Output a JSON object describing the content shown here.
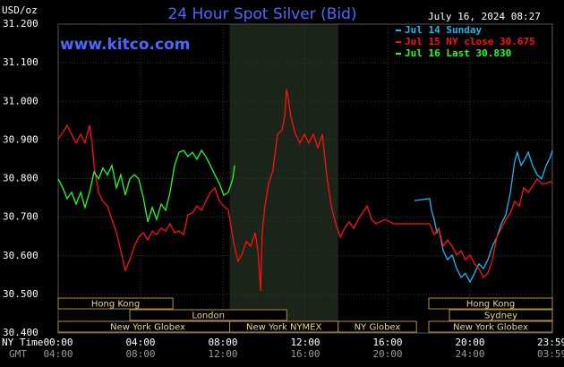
{
  "chart_data": {
    "type": "line",
    "title": "24 Hour Spot Silver (Bid)",
    "unit_label": "USD/oz",
    "timestamp": "July 16, 2024 08:27",
    "watermark": "www.kitco.com",
    "x_row_labels": [
      "NY Time",
      "GMT"
    ],
    "xlim": [
      0,
      24
    ],
    "ylim": [
      30.4,
      31.2
    ],
    "yticks": [
      {
        "value": 30.4,
        "label": "30.400"
      },
      {
        "value": 30.5,
        "label": "30.500"
      },
      {
        "value": 30.6,
        "label": "30.600"
      },
      {
        "value": 30.7,
        "label": "30.700"
      },
      {
        "value": 30.8,
        "label": "30.800"
      },
      {
        "value": 30.9,
        "label": "30.900"
      },
      {
        "value": 31.0,
        "label": "31.000"
      },
      {
        "value": 31.1,
        "label": "31.100"
      },
      {
        "value": 31.2,
        "label": "31.200"
      }
    ],
    "xticks": [
      {
        "value": 0,
        "label": "00:00"
      },
      {
        "value": 4,
        "label": "04:00"
      },
      {
        "value": 8,
        "label": "08:00"
      },
      {
        "value": 12,
        "label": "12:00"
      },
      {
        "value": 16,
        "label": "16:00"
      },
      {
        "value": 20,
        "label": "20:00"
      },
      {
        "value": 23.98,
        "label": "23:59"
      }
    ],
    "gmt_tick_labels": [
      "04:00",
      "08:00",
      "12:00",
      "16:00",
      "20:00",
      "24:00",
      "03:59"
    ],
    "grid": true,
    "sessions": [
      {
        "label": "Hong Kong",
        "start": 0,
        "end": 5.57
      },
      {
        "label": "London",
        "start": 3.48,
        "end": 11.1
      },
      {
        "label": "New York Globex",
        "start": 0,
        "end": 8.7
      },
      {
        "label": "New York NYMEX",
        "start": 8.33,
        "end": 13.6
      },
      {
        "label": "NY Globex",
        "start": 13.6,
        "end": 17.4
      },
      {
        "label": "Hong Kong",
        "start": 18,
        "end": 24
      },
      {
        "label": "Sydney",
        "start": 19,
        "end": 24
      },
      {
        "label": "New York Globex",
        "start": 18,
        "end": 24
      }
    ],
    "series": [
      {
        "name": "Jul 14 Sunday",
        "color": "#1ab8f0",
        "x": [
          17.3,
          18.04,
          18.13,
          18.26,
          18.39,
          18.48,
          18.7,
          18.91,
          19.13,
          19.35,
          19.57,
          19.78,
          20,
          20.22,
          20.43,
          20.65,
          20.87,
          21.09,
          21.3,
          21.52,
          21.74,
          21.96,
          22.17,
          22.3,
          22.48,
          22.61,
          22.83,
          23.04,
          23.26,
          23.48,
          23.7,
          23.91,
          24
        ],
        "values": [
          30.743,
          30.748,
          30.718,
          30.694,
          30.66,
          30.671,
          30.613,
          30.59,
          30.602,
          30.567,
          30.544,
          30.555,
          30.532,
          30.555,
          30.579,
          30.567,
          30.59,
          30.625,
          30.648,
          30.683,
          30.706,
          30.764,
          30.845,
          30.868,
          30.834,
          30.845,
          30.868,
          30.834,
          30.81,
          30.799,
          30.834,
          30.857,
          30.873
        ]
      },
      {
        "name": "Jul 15 NY close 30.675",
        "color": "#ff1010",
        "x": [
          0,
          0.22,
          0.43,
          0.65,
          0.87,
          1.09,
          1.3,
          1.52,
          1.65,
          1.74,
          1.96,
          2.17,
          2.39,
          2.61,
          2.83,
          3.04,
          3.26,
          3.48,
          3.7,
          3.91,
          4.13,
          4.35,
          4.57,
          4.78,
          5,
          5.22,
          5.43,
          5.65,
          5.87,
          6.09,
          6.3,
          6.52,
          6.74,
          6.96,
          7.17,
          7.39,
          7.61,
          7.83,
          8.04,
          8.26,
          8.48,
          8.61,
          8.74,
          8.91,
          9.13,
          9.35,
          9.57,
          9.7,
          9.83,
          9.91,
          10.04,
          10.22,
          10.43,
          10.65,
          10.87,
          11,
          11.09,
          11.17,
          11.3,
          11.52,
          11.74,
          11.96,
          12.17,
          12.39,
          12.61,
          12.83,
          13.04,
          13.26,
          13.48,
          13.7,
          13.91,
          14.13,
          14.35,
          14.57,
          14.78,
          15,
          15.22,
          15.43,
          15.87,
          16.3,
          16.74,
          17.17,
          17.61,
          18.04,
          18.26,
          18.48,
          18.7,
          18.91,
          19.13,
          19.35,
          19.57,
          19.78,
          20,
          20.22,
          20.43,
          20.65,
          20.87,
          21.09,
          21.3,
          21.52,
          21.74,
          21.96,
          22.17,
          22.39,
          22.61,
          22.83,
          23.04,
          23.26,
          23.48,
          23.7,
          23.91,
          24
        ],
        "values": [
          30.903,
          30.919,
          30.938,
          30.915,
          30.892,
          30.915,
          30.892,
          30.938,
          30.892,
          30.834,
          30.764,
          30.741,
          30.729,
          30.694,
          30.66,
          30.613,
          30.562,
          30.59,
          30.625,
          30.648,
          30.66,
          30.641,
          30.664,
          30.655,
          30.671,
          30.664,
          30.683,
          30.66,
          30.664,
          30.655,
          30.706,
          30.711,
          30.729,
          30.718,
          30.741,
          30.764,
          30.776,
          30.741,
          30.729,
          30.718,
          30.648,
          30.613,
          30.586,
          30.602,
          30.637,
          30.625,
          30.66,
          30.613,
          30.509,
          30.66,
          30.729,
          30.787,
          30.822,
          30.915,
          30.926,
          30.961,
          31.031,
          31.008,
          30.961,
          30.915,
          30.892,
          30.915,
          30.892,
          30.915,
          30.88,
          30.915,
          30.81,
          30.729,
          30.683,
          30.648,
          30.671,
          30.688,
          30.671,
          30.694,
          30.711,
          30.729,
          30.694,
          30.683,
          30.694,
          30.683,
          30.683,
          30.683,
          30.683,
          30.683,
          30.655,
          30.671,
          30.625,
          30.641,
          30.625,
          30.602,
          30.613,
          30.59,
          30.602,
          30.579,
          30.567,
          30.544,
          30.555,
          30.59,
          30.648,
          30.671,
          30.694,
          30.711,
          30.741,
          30.729,
          30.776,
          30.764,
          30.78,
          30.799,
          30.787,
          30.787,
          30.792,
          30.787
        ]
      },
      {
        "name": "Jul 16 Last 30.830",
        "color": "#20ff20",
        "x": [
          0,
          0.22,
          0.43,
          0.65,
          0.87,
          1.09,
          1.3,
          1.52,
          1.74,
          1.96,
          2.17,
          2.39,
          2.61,
          2.83,
          3.04,
          3.26,
          3.48,
          3.7,
          3.91,
          4.13,
          4.35,
          4.57,
          4.78,
          5,
          5.22,
          5.43,
          5.65,
          5.87,
          6.09,
          6.3,
          6.52,
          6.74,
          6.96,
          7.17,
          7.39,
          7.61,
          7.83,
          8.04,
          8.26,
          8.48,
          8.57
        ],
        "values": [
          30.799,
          30.776,
          30.748,
          30.764,
          30.734,
          30.764,
          30.725,
          30.764,
          30.817,
          30.799,
          30.827,
          30.81,
          30.834,
          30.776,
          30.81,
          30.757,
          30.799,
          30.81,
          30.799,
          30.752,
          30.688,
          30.725,
          30.694,
          30.734,
          30.718,
          30.764,
          30.834,
          30.868,
          30.873,
          30.857,
          30.868,
          30.85,
          30.873,
          30.857,
          30.834,
          30.81,
          30.787,
          30.757,
          30.764,
          30.799,
          30.834
        ]
      }
    ]
  }
}
